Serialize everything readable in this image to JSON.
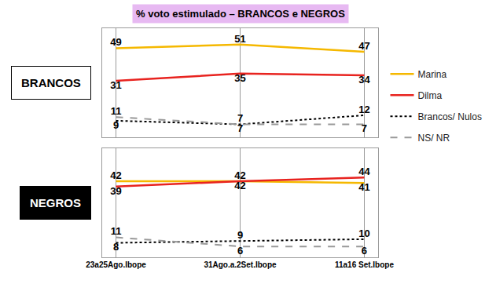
{
  "title": "% voto estimulado – BRANCOS e NEGROS",
  "chart_data": [
    {
      "type": "line",
      "title": "BRANCOS",
      "categories": [
        "23a25Ago.Ibope",
        "31Ago.a.2Set.Ibope",
        "11a16 Set.Ibope"
      ],
      "series": [
        {
          "name": "Marina",
          "color": "#f5b800",
          "line_style": "solid",
          "values": [
            49,
            51,
            47
          ]
        },
        {
          "name": "Dilma",
          "color": "#e8231f",
          "line_style": "solid",
          "values": [
            31,
            35,
            34
          ]
        },
        {
          "name": "Brancos/ Nulos",
          "color": "#000000",
          "line_style": "dotted",
          "values": [
            9,
            7,
            12
          ]
        },
        {
          "name": "NS/ NR",
          "color": "#999999",
          "line_style": "dashed",
          "values": [
            11,
            7,
            7
          ]
        }
      ],
      "ylim": [
        0,
        60
      ],
      "yticks": [],
      "grid": true,
      "data_labels": true,
      "tick_labels": false,
      "legend": "right"
    },
    {
      "type": "line",
      "title": "NEGROS",
      "categories": [
        "23a25Ago.Ibope",
        "31Ago.a.2Set.Ibope",
        "11a16 Set.Ibope"
      ],
      "series": [
        {
          "name": "Marina",
          "color": "#f5b800",
          "line_style": "solid",
          "values": [
            42,
            42,
            41
          ]
        },
        {
          "name": "Dilma",
          "color": "#e8231f",
          "line_style": "solid",
          "values": [
            39,
            42,
            44
          ]
        },
        {
          "name": "Brancos/ Nulos",
          "color": "#000000",
          "line_style": "dotted",
          "values": [
            8,
            9,
            10
          ]
        },
        {
          "name": "NS/ NR",
          "color": "#999999",
          "line_style": "dashed",
          "values": [
            11,
            6,
            6
          ]
        }
      ],
      "ylim": [
        0,
        60
      ],
      "yticks": [],
      "grid": true,
      "data_labels": true,
      "tick_labels": "x",
      "legend": "right"
    }
  ]
}
